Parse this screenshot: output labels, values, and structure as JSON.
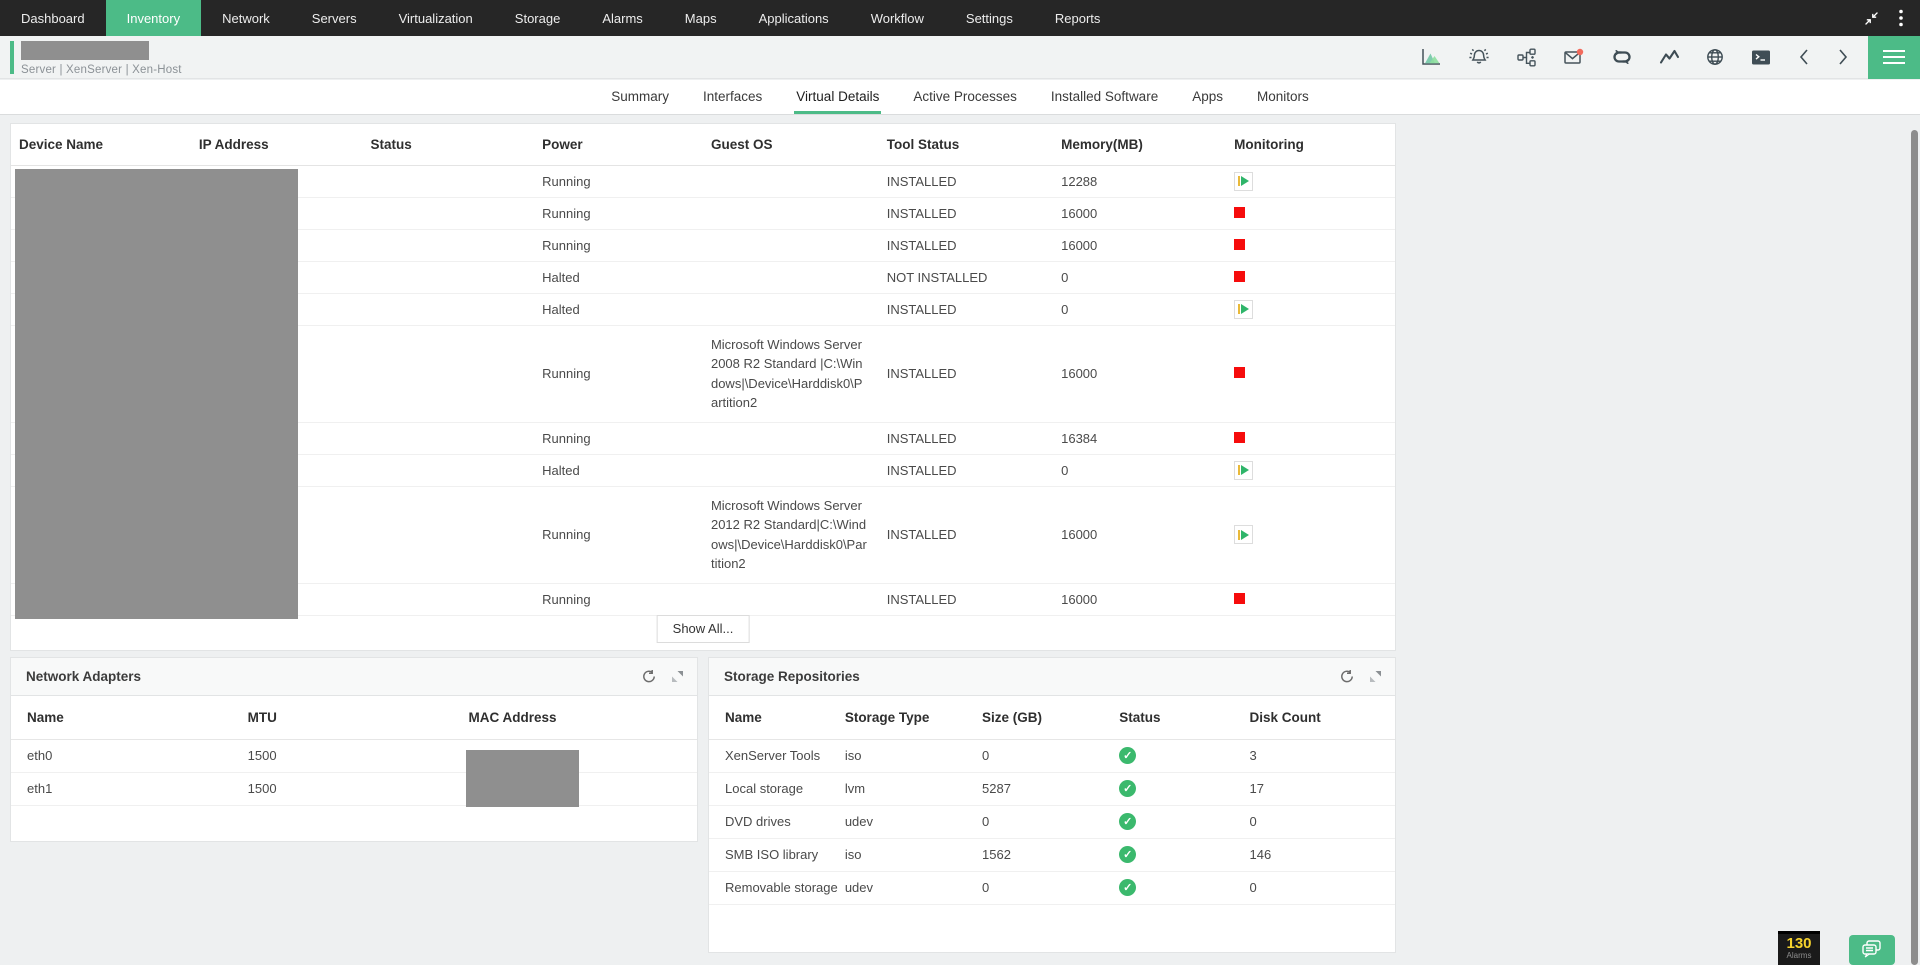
{
  "colors": {
    "accent_green": "#4cbb87",
    "nav_bg": "#262626",
    "stop_red": "#f60c0c",
    "check_green": "#3bb96d",
    "alarm_yellow": "#f6d32d",
    "redact_gray": "#8f8f8f"
  },
  "nav": {
    "items": [
      {
        "label": "Dashboard",
        "active": false
      },
      {
        "label": "Inventory",
        "active": true
      },
      {
        "label": "Network",
        "active": false
      },
      {
        "label": "Servers",
        "active": false
      },
      {
        "label": "Virtualization",
        "active": false
      },
      {
        "label": "Storage",
        "active": false
      },
      {
        "label": "Alarms",
        "active": false
      },
      {
        "label": "Maps",
        "active": false
      },
      {
        "label": "Applications",
        "active": false
      },
      {
        "label": "Workflow",
        "active": false
      },
      {
        "label": "Settings",
        "active": false
      },
      {
        "label": "Reports",
        "active": false
      }
    ],
    "window_icons": [
      "collapse-icon",
      "kebab-menu-icon"
    ]
  },
  "header": {
    "breadcrumb": {
      "segments": [
        "Server",
        "XenServer",
        "Xen-Host"
      ],
      "separator": "|"
    },
    "toolbar_icons": [
      "performance-chart-icon",
      "alarm-bell-icon",
      "workflow-icon",
      "mail-icon",
      "link-icon",
      "monitor-graph-icon",
      "globe-icon",
      "terminal-icon",
      "prev-arrow-icon",
      "next-arrow-icon",
      "menu-button"
    ],
    "mail_has_notification": true
  },
  "tabs": {
    "items": [
      "Summary",
      "Interfaces",
      "Virtual Details",
      "Active Processes",
      "Installed Software",
      "Apps",
      "Monitors"
    ],
    "active": "Virtual Details"
  },
  "vm_table": {
    "columns": [
      "Device Name",
      "IP Address",
      "Status",
      "Power",
      "Guest OS",
      "Tool Status",
      "Memory(MB)",
      "Monitoring"
    ],
    "rows": [
      {
        "device_name": "",
        "ip_address": "",
        "status": "",
        "power": "Running",
        "guest_os": "",
        "tool_status": "INSTALLED",
        "memory": "12288",
        "monitoring": "start"
      },
      {
        "device_name": "",
        "ip_address": "",
        "status": "",
        "power": "Running",
        "guest_os": "",
        "tool_status": "INSTALLED",
        "memory": "16000",
        "monitoring": "stop"
      },
      {
        "device_name": "",
        "ip_address": "",
        "status": "",
        "power": "Running",
        "guest_os": "",
        "tool_status": "INSTALLED",
        "memory": "16000",
        "monitoring": "stop"
      },
      {
        "device_name": "",
        "ip_address": "",
        "status": "",
        "power": "Halted",
        "guest_os": "",
        "tool_status": "NOT INSTALLED",
        "memory": "0",
        "monitoring": "stop"
      },
      {
        "device_name": "",
        "ip_address": "",
        "status": "",
        "power": "Halted",
        "guest_os": "",
        "tool_status": "INSTALLED",
        "memory": "0",
        "monitoring": "start"
      },
      {
        "device_name": "",
        "ip_address": "",
        "status": "",
        "power": "Running",
        "guest_os": "Microsoft Windows Server 2008 R2 Standard |C:\\Windows|\\Device\\Harddisk0\\Partition2",
        "tool_status": "INSTALLED",
        "memory": "16000",
        "monitoring": "stop"
      },
      {
        "device_name": "",
        "ip_address": "",
        "status": "",
        "power": "Running",
        "guest_os": "",
        "tool_status": "INSTALLED",
        "memory": "16384",
        "monitoring": "stop"
      },
      {
        "device_name": "",
        "ip_address": "",
        "status": "",
        "power": "Halted",
        "guest_os": "",
        "tool_status": "INSTALLED",
        "memory": "0",
        "monitoring": "start"
      },
      {
        "device_name": "",
        "ip_address": "",
        "status": "",
        "power": "Running",
        "guest_os": "Microsoft Windows Server 2012 R2 Standard|C:\\Windows|\\Device\\Harddisk0\\Partition2",
        "tool_status": "INSTALLED",
        "memory": "16000",
        "monitoring": "start"
      },
      {
        "device_name": "",
        "ip_address": "",
        "status": "",
        "power": "Running",
        "guest_os": "",
        "tool_status": "INSTALLED",
        "memory": "16000",
        "monitoring": "stop"
      }
    ],
    "show_all_label": "Show All..."
  },
  "network_adapters": {
    "title": "Network Adapters",
    "panel_icons": [
      "refresh-icon",
      "expand-icon"
    ],
    "columns": [
      "Name",
      "MTU",
      "MAC Address"
    ],
    "rows": [
      {
        "name": "eth0",
        "mtu": "1500",
        "mac": ""
      },
      {
        "name": "eth1",
        "mtu": "1500",
        "mac": ""
      }
    ]
  },
  "storage_repositories": {
    "title": "Storage Repositories",
    "panel_icons": [
      "refresh-icon",
      "expand-icon"
    ],
    "columns": [
      "Name",
      "Storage Type",
      "Size (GB)",
      "Status",
      "Disk Count"
    ],
    "rows": [
      {
        "name": "XenServer Tools",
        "type": "iso",
        "size": "0",
        "status": "ok",
        "disk_count": "3"
      },
      {
        "name": "Local storage",
        "type": "lvm",
        "size": "5287",
        "status": "ok",
        "disk_count": "17"
      },
      {
        "name": "DVD drives",
        "type": "udev",
        "size": "0",
        "status": "ok",
        "disk_count": "0"
      },
      {
        "name": "SMB ISO library",
        "type": "iso",
        "size": "1562",
        "status": "ok",
        "disk_count": "146"
      },
      {
        "name": "Removable storage",
        "type": "udev",
        "size": "0",
        "status": "ok",
        "disk_count": "0"
      }
    ]
  },
  "footer": {
    "alarm_count": "130",
    "alarm_label": "Alarms"
  }
}
